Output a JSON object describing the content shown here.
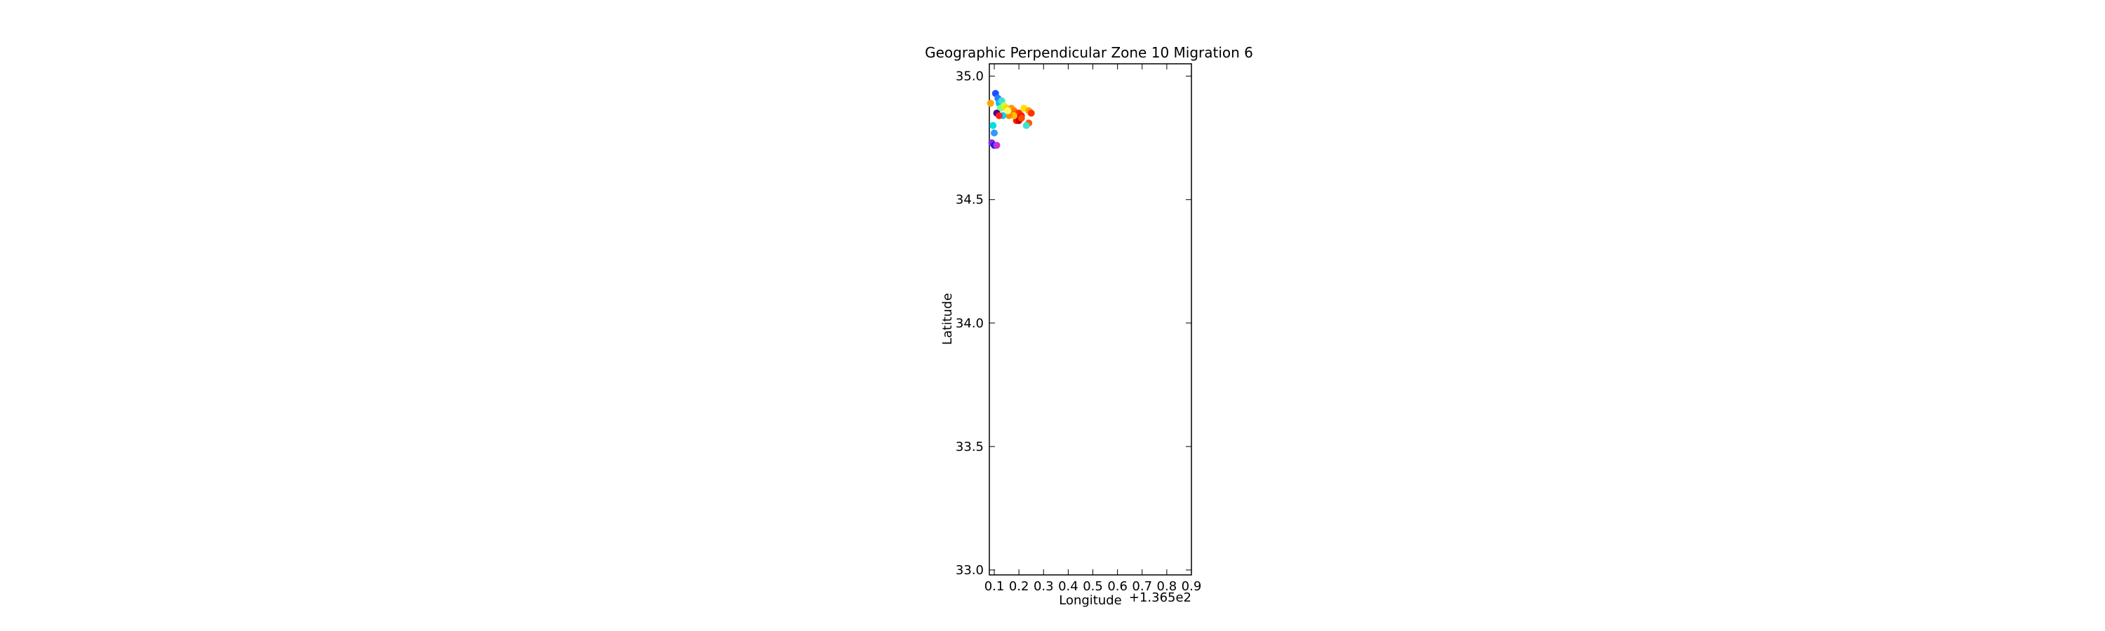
{
  "chart_data": {
    "type": "scatter",
    "title": "Geographic Perpendicular Zone 10 Migration 6",
    "xlabel": "Longitude",
    "ylabel": "Latitude",
    "x_offset_label": "+1.365e2",
    "xlim": [
      0.08,
      0.9
    ],
    "ylim": [
      32.98,
      35.05
    ],
    "xticks": [
      0.1,
      0.2,
      0.3,
      0.4,
      0.5,
      0.6,
      0.7,
      0.8,
      0.9
    ],
    "xtick_labels": [
      "0.1",
      "0.2",
      "0.3",
      "0.4",
      "0.5",
      "0.6",
      "0.7",
      "0.8",
      "0.9"
    ],
    "yticks": [
      33.0,
      33.5,
      34.0,
      34.5,
      35.0
    ],
    "ytick_labels": [
      "33.0",
      "33.5",
      "34.0",
      "34.5",
      "35.0"
    ],
    "grid": false,
    "legend": "none",
    "points": [
      {
        "x": 0.105,
        "y": 34.93,
        "color": "#1f4fff"
      },
      {
        "x": 0.115,
        "y": 34.91,
        "color": "#2a7fff"
      },
      {
        "x": 0.12,
        "y": 34.89,
        "color": "#00bfff"
      },
      {
        "x": 0.13,
        "y": 34.9,
        "color": "#40e0d0"
      },
      {
        "x": 0.125,
        "y": 34.87,
        "color": "#7fff7f"
      },
      {
        "x": 0.14,
        "y": 34.88,
        "color": "#c8ff3c"
      },
      {
        "x": 0.15,
        "y": 34.87,
        "color": "#ffd700"
      },
      {
        "x": 0.16,
        "y": 34.86,
        "color": "#ffb000"
      },
      {
        "x": 0.17,
        "y": 34.87,
        "color": "#ff9c00"
      },
      {
        "x": 0.18,
        "y": 34.86,
        "color": "#ff8000"
      },
      {
        "x": 0.19,
        "y": 34.85,
        "color": "#ff6000"
      },
      {
        "x": 0.2,
        "y": 34.85,
        "color": "#ff3000"
      },
      {
        "x": 0.21,
        "y": 34.84,
        "color": "#ff1a00"
      },
      {
        "x": 0.2,
        "y": 34.83,
        "color": "#e00000"
      },
      {
        "x": 0.19,
        "y": 34.82,
        "color": "#ff2000"
      },
      {
        "x": 0.2,
        "y": 34.82,
        "color": "#cc0000"
      },
      {
        "x": 0.21,
        "y": 34.83,
        "color": "#ff4500"
      },
      {
        "x": 0.22,
        "y": 34.87,
        "color": "#ffe000"
      },
      {
        "x": 0.24,
        "y": 34.86,
        "color": "#ffa500"
      },
      {
        "x": 0.25,
        "y": 34.85,
        "color": "#ff3300"
      },
      {
        "x": 0.24,
        "y": 34.81,
        "color": "#ff5a00"
      },
      {
        "x": 0.23,
        "y": 34.8,
        "color": "#40e0d0"
      },
      {
        "x": 0.18,
        "y": 34.84,
        "color": "#ffc000"
      },
      {
        "x": 0.16,
        "y": 34.84,
        "color": "#ff8c00"
      },
      {
        "x": 0.155,
        "y": 34.86,
        "color": "#ffff66"
      },
      {
        "x": 0.135,
        "y": 34.84,
        "color": "#00d0ff"
      },
      {
        "x": 0.11,
        "y": 34.85,
        "color": "#4b0082"
      },
      {
        "x": 0.12,
        "y": 34.84,
        "color": "#ff2020"
      },
      {
        "x": 0.095,
        "y": 34.8,
        "color": "#00e0e0"
      },
      {
        "x": 0.1,
        "y": 34.77,
        "color": "#3399ff"
      },
      {
        "x": 0.09,
        "y": 34.73,
        "color": "#8a2be2"
      },
      {
        "x": 0.1,
        "y": 34.72,
        "color": "#1a1aff"
      },
      {
        "x": 0.11,
        "y": 34.72,
        "color": "#cc33cc"
      },
      {
        "x": 0.085,
        "y": 34.89,
        "color": "#ffa500"
      }
    ]
  }
}
